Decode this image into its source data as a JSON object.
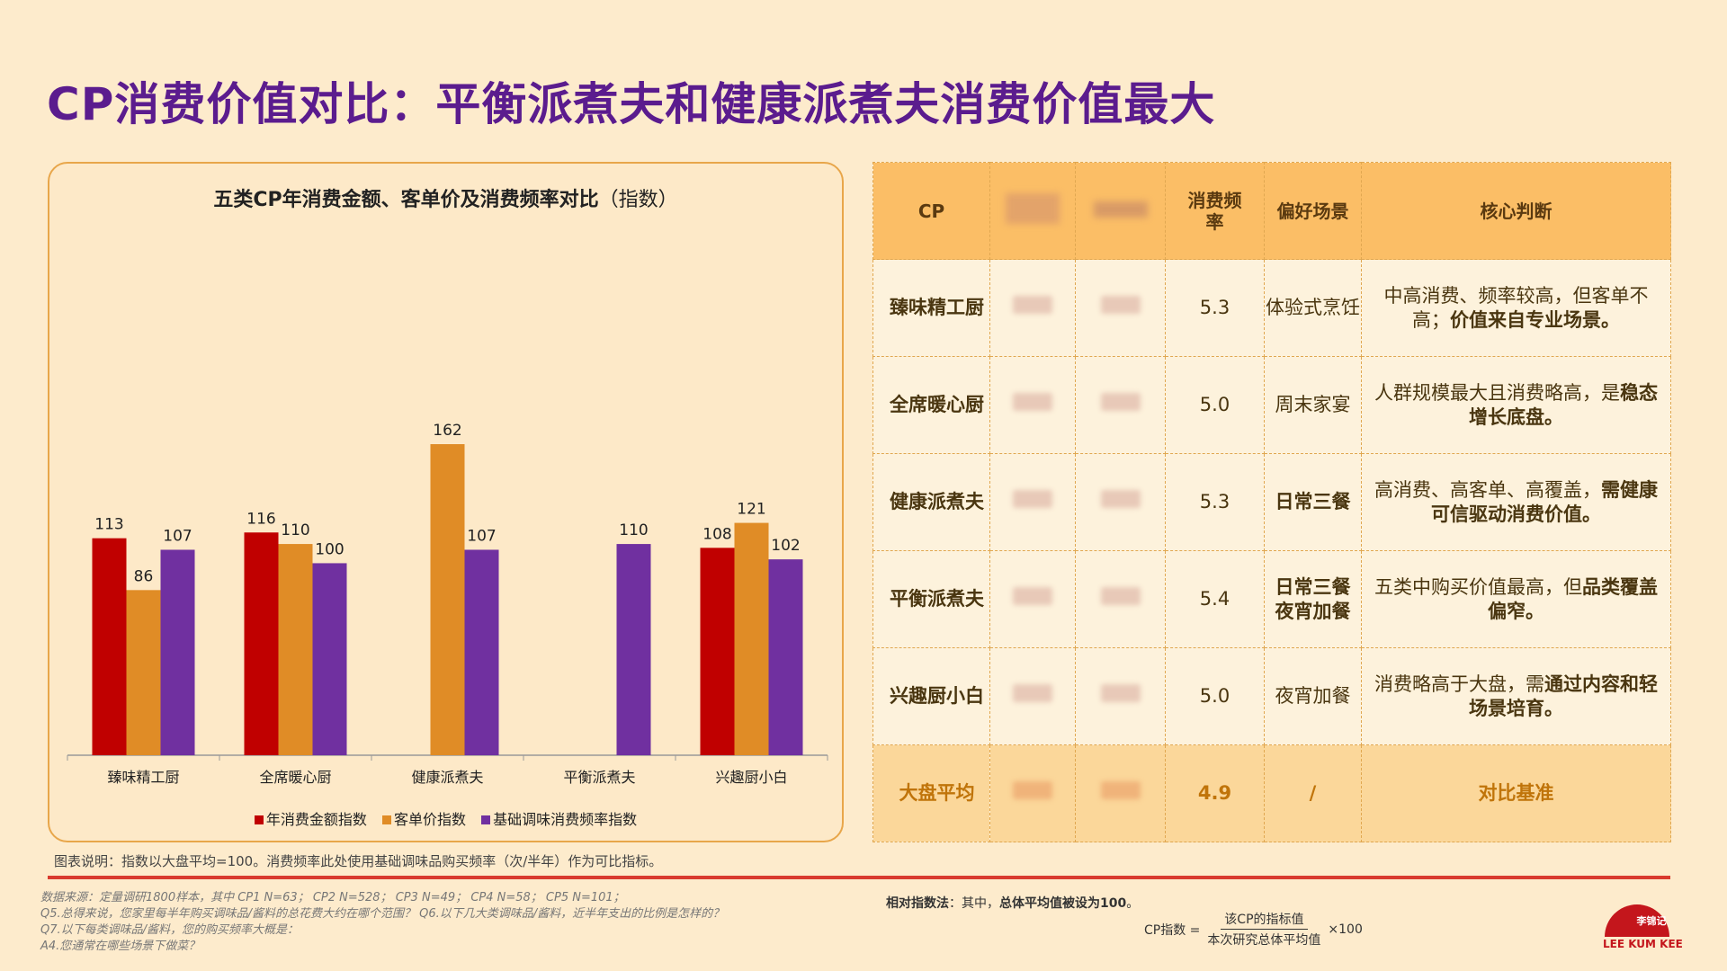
{
  "page_title": "CP消费价值对比：平衡派煮夫和健康派煮夫消费价值最大",
  "chart_title_main": "五类CP年消费金额、客单价及消费频率对比",
  "chart_title_suffix": "（指数）",
  "chart_data": {
    "type": "bar",
    "title": "五类CP年消费金额、客单价及消费频率对比（指数）",
    "categories": [
      "臻味精工厨",
      "全席暖心厨",
      "健康派煮夫",
      "平衡派煮夫",
      "兴趣厨小白"
    ],
    "series": [
      {
        "name": "年消费金额指数",
        "values": [
          113,
          116,
          null,
          null,
          108
        ],
        "color": "#C00000"
      },
      {
        "name": "客单价指数",
        "values": [
          86,
          110,
          162,
          null,
          121
        ],
        "color": "#E08C26"
      },
      {
        "name": "基础调味消费频率指数",
        "values": [
          107,
          100,
          107,
          110,
          102
        ],
        "color": "#7030A0"
      }
    ],
    "ylim": [
      0,
      280
    ],
    "legend": "bottom",
    "grid": false
  },
  "chart_note": "图表说明：指数以大盘平均=100。消费频率此处使用基础调味品购买频率（次/半年）作为可比指标。",
  "table": {
    "headers": [
      "CP",
      "",
      "",
      "消费频率",
      "偏好场景",
      "核心判断"
    ],
    "rows": [
      {
        "name": "臻味精工厨",
        "freq": "5.3",
        "scene": "体验式烹饪",
        "scene_strong": false,
        "judge_plain": "中高消费、频率较高，但客单不高；",
        "judge_bold": "价值来自专业场景。"
      },
      {
        "name": "全席暖心厨",
        "freq": "5.0",
        "scene": "周末家宴",
        "scene_strong": false,
        "judge_plain": "人群规模最大且消费略高，是",
        "judge_bold": "稳态增长底盘。"
      },
      {
        "name": "健康派煮夫",
        "freq": "5.3",
        "scene": "日常三餐",
        "scene_strong": true,
        "judge_plain": "高消费、高客单、高覆盖，",
        "judge_bold": "需健康可信驱动消费价值。"
      },
      {
        "name": "平衡派煮夫",
        "freq": "5.4",
        "scene": "日常三餐\n夜宵加餐",
        "scene_strong": true,
        "judge_plain": "五类中购买价值最高，但",
        "judge_bold": "品类覆盖偏窄。"
      },
      {
        "name": "兴趣厨小白",
        "freq": "5.0",
        "scene": "夜宵加餐",
        "scene_strong": false,
        "judge_plain": "消费略高于大盘，需",
        "judge_bold": "通过内容和轻场景培育。"
      }
    ],
    "baseline": {
      "name": "大盘平均",
      "freq": "4.9",
      "scene": "/",
      "judge": "对比基准"
    }
  },
  "sources": [
    "数据来源：定量调研1800样本，其中 CP1 N=63；  CP2 N=528；  CP3 N=49；  CP4 N=58；  CP5 N=101；",
    "  Q5.总得来说，您家里每半年购买调味品/酱料的总花费大约在哪个范围？      Q6.以下几大类调味品/酱料，近半年支出的比例是怎样的？",
    "  Q7.以下每类调味品/酱料，您的购买频率大概是：",
    "  A4.您通常在哪些场景下做菜？"
  ],
  "relative_label": "相对指数法",
  "relative_text": "：其中，",
  "relative_bold": "总体平均值被设为100",
  "relative_end": "。",
  "formula": {
    "lhs": "CP指数 =",
    "numerator": "该CP的指标值",
    "denominator": "本次研究总体平均值",
    "times": "×100"
  },
  "logo": {
    "mark": "李锦记",
    "text": "LEE KUM KEE",
    "color": "#C4161C"
  }
}
